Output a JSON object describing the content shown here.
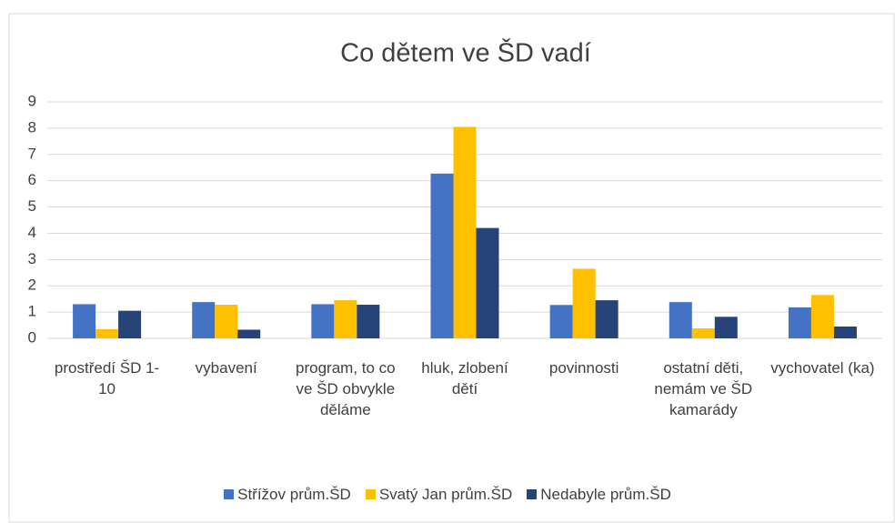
{
  "chart_data": {
    "type": "bar",
    "title": "Co dětem ve ŠD vadí",
    "categories": [
      "prostředí ŠD 1-10",
      "vybavení",
      "program, to co ve ŠD obvykle děláme",
      "hluk, zlobení dětí",
      "povinnosti",
      "ostatní děti, nemám ve ŠD kamarády",
      "vychovatel (ka)"
    ],
    "series": [
      {
        "name": "Střížov prům.ŠD",
        "color": "#4472c4",
        "values": [
          1.3,
          1.38,
          1.3,
          6.27,
          1.27,
          1.38,
          1.18
        ]
      },
      {
        "name": "Svatý Jan prům.ŠD",
        "color": "#ffc000",
        "values": [
          0.35,
          1.28,
          1.45,
          8.05,
          2.65,
          0.38,
          1.65
        ]
      },
      {
        "name": "Nedabyle prům.ŠD",
        "color": "#264478",
        "values": [
          1.05,
          0.33,
          1.28,
          4.2,
          1.45,
          0.82,
          0.45
        ]
      }
    ],
    "ylim": [
      0,
      9
    ],
    "yticks": [
      0,
      1,
      2,
      3,
      4,
      5,
      6,
      7,
      8,
      9
    ],
    "grid": true,
    "legend": "bottom"
  }
}
